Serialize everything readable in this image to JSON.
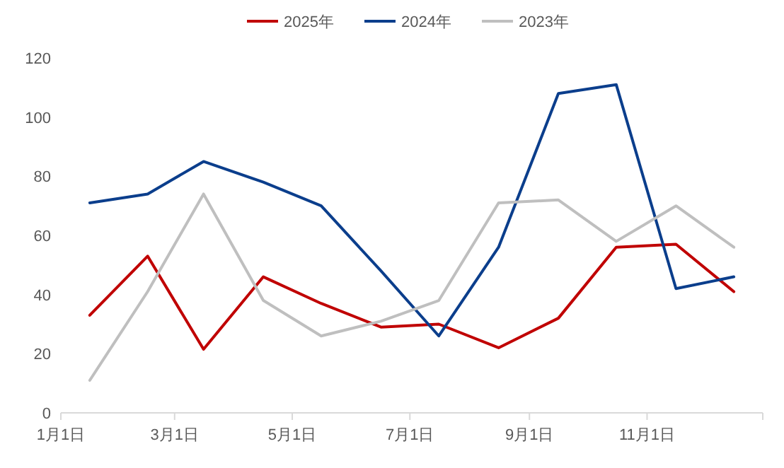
{
  "chart_data": {
    "type": "line",
    "x": [
      "--01-16",
      "--02-15",
      "--03-16",
      "--04-16",
      "--05-16",
      "--06-16",
      "--07-16",
      "--08-16",
      "--09-16",
      "--10-16",
      "--11-16",
      "--12-16"
    ],
    "series": [
      {
        "name": "2025年",
        "color": "#c00000",
        "values": [
          33,
          53,
          21.5,
          46,
          37,
          29,
          30,
          22,
          32,
          56,
          57,
          41
        ]
      },
      {
        "name": "2024年",
        "color": "#0b3e8c",
        "values": [
          71,
          74,
          85,
          78,
          70,
          48,
          26,
          56,
          108,
          111,
          42,
          46
        ]
      },
      {
        "name": "2023年",
        "color": "#bfbfbf",
        "values": [
          11,
          41,
          74,
          38,
          26,
          31,
          38,
          71,
          72,
          58,
          70,
          56
        ]
      }
    ],
    "xlim": [
      "--01-01",
      "--12-31"
    ],
    "xticks": [
      {
        "value": "--01-01",
        "label": "1月1日"
      },
      {
        "value": "--03-01",
        "label": "3月1日"
      },
      {
        "value": "--05-01",
        "label": "5月1日"
      },
      {
        "value": "--07-01",
        "label": "7月1日"
      },
      {
        "value": "--09-01",
        "label": "9月1日"
      },
      {
        "value": "--11-01",
        "label": "11月1日"
      },
      {
        "value": "--12-31",
        "label": null
      }
    ],
    "ylim": [
      0,
      120
    ],
    "yticks": [
      0,
      20,
      40,
      60,
      80,
      100,
      120
    ],
    "grid": false,
    "legend": "top",
    "marker": "none",
    "line_style": "solid"
  }
}
